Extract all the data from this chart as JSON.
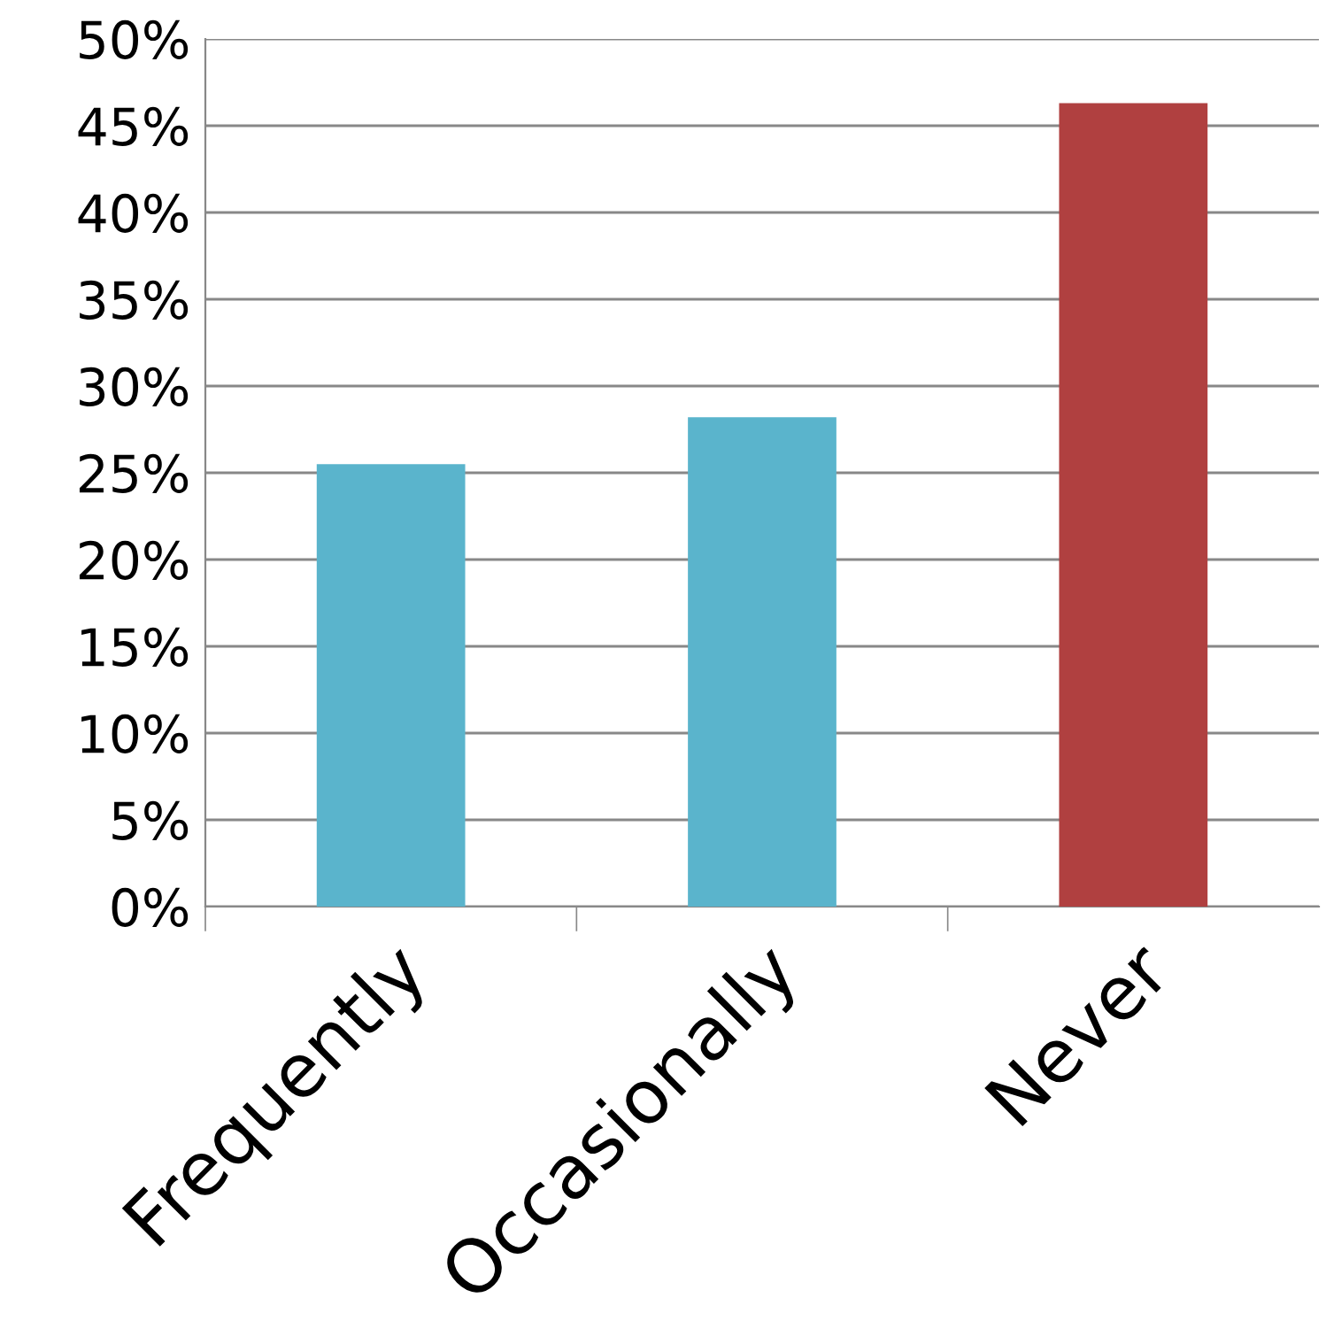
{
  "chart_data": {
    "type": "bar",
    "categories": [
      "Frequently",
      "Occasionally",
      "Never"
    ],
    "values": [
      25.5,
      28.2,
      46.3
    ],
    "colors": [
      "#5ab4cc",
      "#5ab4cc",
      "#b04040"
    ],
    "ylim": [
      0,
      50
    ],
    "yticks": [
      {
        "value": 0,
        "label": "0%"
      },
      {
        "value": 5,
        "label": "5%"
      },
      {
        "value": 10,
        "label": "10%"
      },
      {
        "value": 15,
        "label": "15%"
      },
      {
        "value": 20,
        "label": "20%"
      },
      {
        "value": 25,
        "label": "25%"
      },
      {
        "value": 30,
        "label": "30%"
      },
      {
        "value": 35,
        "label": "35%"
      },
      {
        "value": 40,
        "label": "40%"
      },
      {
        "value": 45,
        "label": "45%"
      },
      {
        "value": 50,
        "label": "50%"
      }
    ],
    "grid": "y",
    "legend": false
  }
}
